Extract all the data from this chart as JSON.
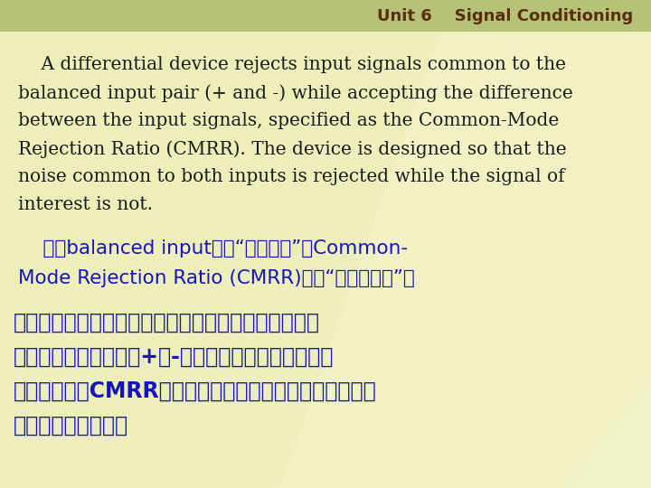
{
  "header_bg_color": "#b5c278",
  "header_text": "Unit 6    Signal Conditioning",
  "header_text_color": "#5a2d0c",
  "body_bg_color": "#eeeebb",
  "english_text_color": "#1a1a1a",
  "blue_text_color": "#1515bb",
  "blue_bold_color": "#1515bb",
  "english_lines": [
    "    A differential device rejects input signals common to the",
    "balanced input pair (+ and -) while accepting the difference",
    "between the input signals, specified as the Common-Mode",
    "Rejection Ratio (CMRR). The device is designed so that the",
    "noise common to both inputs is rejected while the signal of",
    "interest is not."
  ],
  "chinese_note_lines": [
    "    句中balanced input意为“对称输入”，Common-",
    "Mode Rejection Ratio (CMRR)意为“共模抑制比”。"
  ],
  "chinese_trans_lines": [
    "译为：差动装置在接收两输入端口的差分信号时，抑制",
    "这两个对称输入端口（+和-）的共模输入信号，这称为",
    "共模抑制比（CMRR）。这样设计抑制输入端的共模噪音，",
    "而不抑制有用信号。"
  ],
  "figsize": [
    7.2,
    5.4
  ],
  "dpi": 100
}
